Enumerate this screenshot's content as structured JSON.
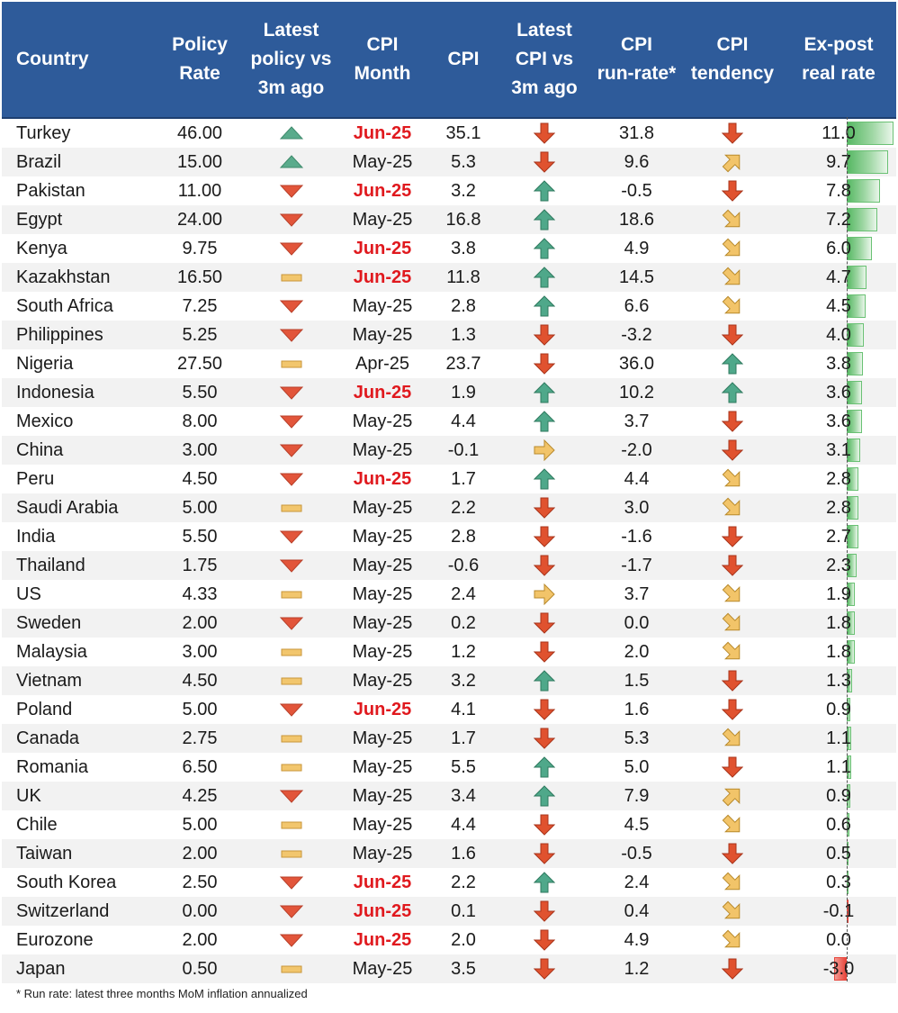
{
  "columns": [
    "Country",
    "Policy\nRate",
    "Latest\npolicy vs\n3m ago",
    "CPI\nMonth",
    "CPI",
    "Latest\nCPI vs\n3m ago",
    "CPI\nrun-rate*",
    "CPI\ntendency",
    "Ex-post\nreal rate"
  ],
  "colors": {
    "header_bg": "#2e5b9a",
    "highlight_month": "#e0191e",
    "bar_pos": "#63be7b",
    "bar_neg": "#f8696b"
  },
  "rows": [
    {
      "country": "Turkey",
      "policy": "46.00",
      "policy_trend": "up",
      "month": "Jun-25",
      "month_hi": true,
      "cpi": "35.1",
      "cpi_trend": "down",
      "runrate": "31.8",
      "tendency": "down",
      "real": "11.0",
      "real_value": 11.0
    },
    {
      "country": "Brazil",
      "policy": "15.00",
      "policy_trend": "up",
      "month": "May-25",
      "month_hi": false,
      "cpi": "5.3",
      "cpi_trend": "down",
      "runrate": "9.6",
      "tendency": "up-right",
      "real": "9.7",
      "real_value": 9.7
    },
    {
      "country": "Pakistan",
      "policy": "11.00",
      "policy_trend": "down",
      "month": "Jun-25",
      "month_hi": true,
      "cpi": "3.2",
      "cpi_trend": "up",
      "runrate": "-0.5",
      "tendency": "down",
      "real": "7.8",
      "real_value": 7.8
    },
    {
      "country": "Egypt",
      "policy": "24.00",
      "policy_trend": "down",
      "month": "May-25",
      "month_hi": false,
      "cpi": "16.8",
      "cpi_trend": "up",
      "runrate": "18.6",
      "tendency": "down-right",
      "real": "7.2",
      "real_value": 7.2
    },
    {
      "country": "Kenya",
      "policy": "9.75",
      "policy_trend": "down",
      "month": "Jun-25",
      "month_hi": true,
      "cpi": "3.8",
      "cpi_trend": "up",
      "runrate": "4.9",
      "tendency": "down-right",
      "real": "6.0",
      "real_value": 6.0
    },
    {
      "country": "Kazakhstan",
      "policy": "16.50",
      "policy_trend": "flat",
      "month": "Jun-25",
      "month_hi": true,
      "cpi": "11.8",
      "cpi_trend": "up",
      "runrate": "14.5",
      "tendency": "down-right",
      "real": "4.7",
      "real_value": 4.7
    },
    {
      "country": "South Africa",
      "policy": "7.25",
      "policy_trend": "down",
      "month": "May-25",
      "month_hi": false,
      "cpi": "2.8",
      "cpi_trend": "up",
      "runrate": "6.6",
      "tendency": "down-right",
      "real": "4.5",
      "real_value": 4.5
    },
    {
      "country": "Philippines",
      "policy": "5.25",
      "policy_trend": "down",
      "month": "May-25",
      "month_hi": false,
      "cpi": "1.3",
      "cpi_trend": "down",
      "runrate": "-3.2",
      "tendency": "down",
      "real": "4.0",
      "real_value": 4.0
    },
    {
      "country": "Nigeria",
      "policy": "27.50",
      "policy_trend": "flat",
      "month": "Apr-25",
      "month_hi": false,
      "cpi": "23.7",
      "cpi_trend": "down",
      "runrate": "36.0",
      "tendency": "up",
      "real": "3.8",
      "real_value": 3.8
    },
    {
      "country": "Indonesia",
      "policy": "5.50",
      "policy_trend": "down",
      "month": "Jun-25",
      "month_hi": true,
      "cpi": "1.9",
      "cpi_trend": "up",
      "runrate": "10.2",
      "tendency": "up",
      "real": "3.6",
      "real_value": 3.6
    },
    {
      "country": "Mexico",
      "policy": "8.00",
      "policy_trend": "down",
      "month": "May-25",
      "month_hi": false,
      "cpi": "4.4",
      "cpi_trend": "up",
      "runrate": "3.7",
      "tendency": "down",
      "real": "3.6",
      "real_value": 3.6
    },
    {
      "country": "China",
      "policy": "3.00",
      "policy_trend": "down",
      "month": "May-25",
      "month_hi": false,
      "cpi": "-0.1",
      "cpi_trend": "right",
      "runrate": "-2.0",
      "tendency": "down",
      "real": "3.1",
      "real_value": 3.1
    },
    {
      "country": "Peru",
      "policy": "4.50",
      "policy_trend": "down",
      "month": "Jun-25",
      "month_hi": true,
      "cpi": "1.7",
      "cpi_trend": "up",
      "runrate": "4.4",
      "tendency": "down-right",
      "real": "2.8",
      "real_value": 2.8
    },
    {
      "country": "Saudi Arabia",
      "policy": "5.00",
      "policy_trend": "flat",
      "month": "May-25",
      "month_hi": false,
      "cpi": "2.2",
      "cpi_trend": "down",
      "runrate": "3.0",
      "tendency": "down-right",
      "real": "2.8",
      "real_value": 2.8
    },
    {
      "country": "India",
      "policy": "5.50",
      "policy_trend": "down",
      "month": "May-25",
      "month_hi": false,
      "cpi": "2.8",
      "cpi_trend": "down",
      "runrate": "-1.6",
      "tendency": "down",
      "real": "2.7",
      "real_value": 2.7
    },
    {
      "country": "Thailand",
      "policy": "1.75",
      "policy_trend": "down",
      "month": "May-25",
      "month_hi": false,
      "cpi": "-0.6",
      "cpi_trend": "down",
      "runrate": "-1.7",
      "tendency": "down",
      "real": "2.3",
      "real_value": 2.3
    },
    {
      "country": "US",
      "policy": "4.33",
      "policy_trend": "flat",
      "month": "May-25",
      "month_hi": false,
      "cpi": "2.4",
      "cpi_trend": "right",
      "runrate": "3.7",
      "tendency": "down-right",
      "real": "1.9",
      "real_value": 1.9
    },
    {
      "country": "Sweden",
      "policy": "2.00",
      "policy_trend": "down",
      "month": "May-25",
      "month_hi": false,
      "cpi": "0.2",
      "cpi_trend": "down",
      "runrate": "0.0",
      "tendency": "down-right",
      "real": "1.8",
      "real_value": 1.8
    },
    {
      "country": "Malaysia",
      "policy": "3.00",
      "policy_trend": "flat",
      "month": "May-25",
      "month_hi": false,
      "cpi": "1.2",
      "cpi_trend": "down",
      "runrate": "2.0",
      "tendency": "down-right",
      "real": "1.8",
      "real_value": 1.8
    },
    {
      "country": "Vietnam",
      "policy": "4.50",
      "policy_trend": "flat",
      "month": "May-25",
      "month_hi": false,
      "cpi": "3.2",
      "cpi_trend": "up",
      "runrate": "1.5",
      "tendency": "down",
      "real": "1.3",
      "real_value": 1.3
    },
    {
      "country": "Poland",
      "policy": "5.00",
      "policy_trend": "down",
      "month": "Jun-25",
      "month_hi": true,
      "cpi": "4.1",
      "cpi_trend": "down",
      "runrate": "1.6",
      "tendency": "down",
      "real": "0.9",
      "real_value": 0.9
    },
    {
      "country": "Canada",
      "policy": "2.75",
      "policy_trend": "flat",
      "month": "May-25",
      "month_hi": false,
      "cpi": "1.7",
      "cpi_trend": "down",
      "runrate": "5.3",
      "tendency": "down-right",
      "real": "1.1",
      "real_value": 1.1
    },
    {
      "country": "Romania",
      "policy": "6.50",
      "policy_trend": "flat",
      "month": "May-25",
      "month_hi": false,
      "cpi": "5.5",
      "cpi_trend": "up",
      "runrate": "5.0",
      "tendency": "down",
      "real": "1.1",
      "real_value": 1.1
    },
    {
      "country": "UK",
      "policy": "4.25",
      "policy_trend": "down",
      "month": "May-25",
      "month_hi": false,
      "cpi": "3.4",
      "cpi_trend": "up",
      "runrate": "7.9",
      "tendency": "up-right",
      "real": "0.9",
      "real_value": 0.9
    },
    {
      "country": "Chile",
      "policy": "5.00",
      "policy_trend": "flat",
      "month": "May-25",
      "month_hi": false,
      "cpi": "4.4",
      "cpi_trend": "down",
      "runrate": "4.5",
      "tendency": "down-right",
      "real": "0.6",
      "real_value": 0.6
    },
    {
      "country": "Taiwan",
      "policy": "2.00",
      "policy_trend": "flat",
      "month": "May-25",
      "month_hi": false,
      "cpi": "1.6",
      "cpi_trend": "down",
      "runrate": "-0.5",
      "tendency": "down",
      "real": "0.5",
      "real_value": 0.5
    },
    {
      "country": "South Korea",
      "policy": "2.50",
      "policy_trend": "down",
      "month": "Jun-25",
      "month_hi": true,
      "cpi": "2.2",
      "cpi_trend": "up",
      "runrate": "2.4",
      "tendency": "down-right",
      "real": "0.3",
      "real_value": 0.3
    },
    {
      "country": "Switzerland",
      "policy": "0.00",
      "policy_trend": "down",
      "month": "Jun-25",
      "month_hi": true,
      "cpi": "0.1",
      "cpi_trend": "down",
      "runrate": "0.4",
      "tendency": "down-right",
      "real": "-0.1",
      "real_value": -0.1
    },
    {
      "country": "Eurozone",
      "policy": "2.00",
      "policy_trend": "down",
      "month": "Jun-25",
      "month_hi": true,
      "cpi": "2.0",
      "cpi_trend": "down",
      "runrate": "4.9",
      "tendency": "down-right",
      "real": "0.0",
      "real_value": 0.0
    },
    {
      "country": "Japan",
      "policy": "0.50",
      "policy_trend": "flat",
      "month": "May-25",
      "month_hi": false,
      "cpi": "3.5",
      "cpi_trend": "down",
      "runrate": "1.2",
      "tendency": "down",
      "real": "-3.0",
      "real_value": -3.0
    }
  ],
  "footnote": "* Run rate: latest three months MoM inflation annualized"
}
